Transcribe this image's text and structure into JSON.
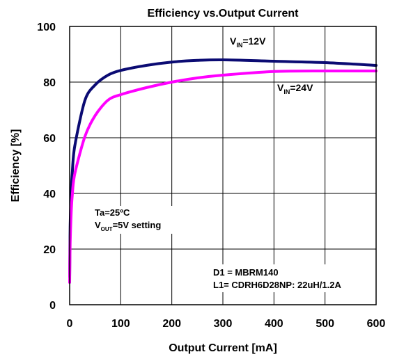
{
  "chart_data": {
    "type": "line",
    "title": "Efficiency vs.Output Current",
    "xlabel": "Output Current [mA]",
    "ylabel": "Efficiency [%]",
    "xlim": [
      0,
      600
    ],
    "ylim": [
      0,
      100
    ],
    "xticks": [
      "0",
      "100",
      "200",
      "300",
      "400",
      "500",
      "600"
    ],
    "yticks": [
      "0",
      "20",
      "40",
      "60",
      "80",
      "100"
    ],
    "grid": true,
    "series": [
      {
        "name_main": "V",
        "name_sub": "IN",
        "name_rest": "=12V",
        "color": "#0b0b73",
        "x": [
          0,
          1,
          3,
          5,
          10,
          30,
          50,
          75,
          100,
          150,
          200,
          250,
          300,
          400,
          500,
          600
        ],
        "y": [
          10,
          28,
          40,
          47,
          57,
          73.5,
          79,
          82.5,
          84.2,
          86,
          87.2,
          87.8,
          88,
          87.5,
          87,
          86
        ]
      },
      {
        "name_main": "V",
        "name_sub": "IN",
        "name_rest": "=24V",
        "color": "#ff00ff",
        "x": [
          0,
          1,
          3,
          5,
          10,
          30,
          50,
          75,
          100,
          150,
          200,
          250,
          300,
          400,
          500,
          600
        ],
        "y": [
          8,
          22,
          33,
          39,
          47,
          60.5,
          68,
          73.5,
          75.5,
          78,
          80,
          81.5,
          82.5,
          83.8,
          84,
          84
        ]
      }
    ],
    "annotations": {
      "cond_line1": "Ta=25ºC",
      "cond_line2_main": "V",
      "cond_line2_sub": "OUT",
      "cond_line2_rest": "=5V setting",
      "parts_line1": "D1 = MBRM140",
      "parts_line2": "L1= CDRH6D28NP: 22uH/1.2A"
    }
  }
}
